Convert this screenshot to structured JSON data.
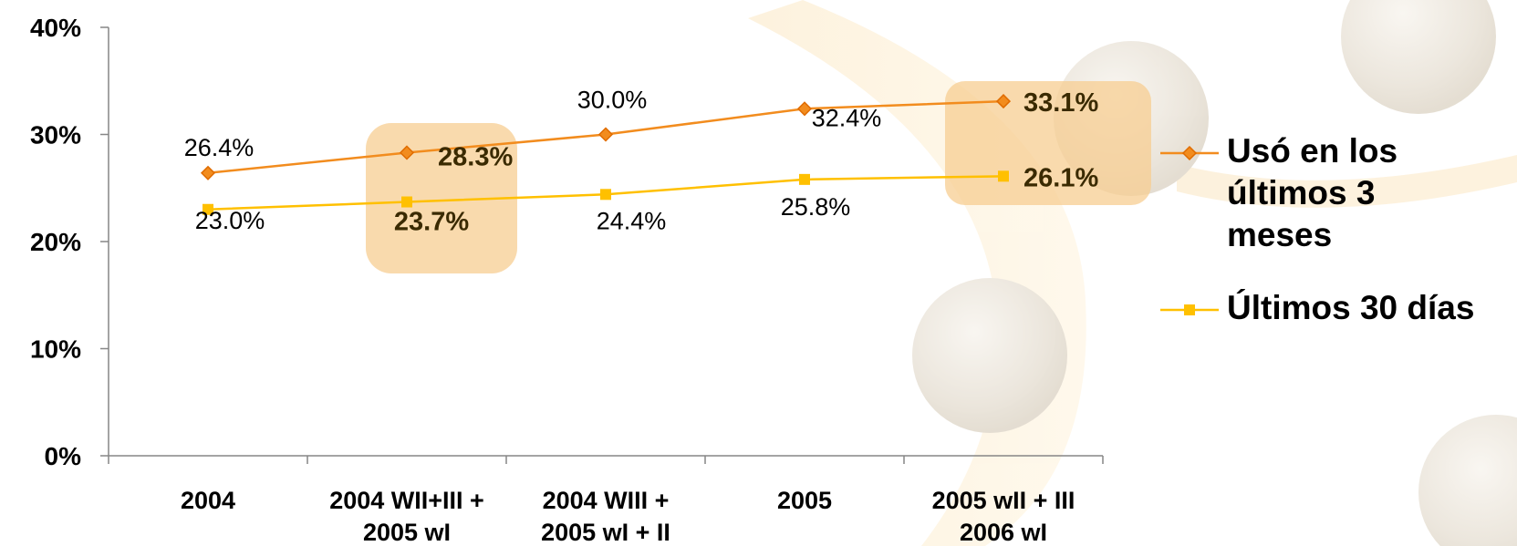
{
  "chart_data": {
    "type": "line",
    "categories": [
      [
        "2004"
      ],
      [
        "2004 WII+III +",
        "2005 wI"
      ],
      [
        "2004 WIII +",
        "2005 wI + II"
      ],
      [
        "2005"
      ],
      [
        "2005 wII + III",
        "2006 wI"
      ]
    ],
    "series": [
      {
        "name": "Usó en los últimos 3 meses",
        "color": "#f28c1e",
        "marker": "diamond",
        "values": [
          26.4,
          28.3,
          30.0,
          32.4,
          33.1
        ],
        "value_labels": [
          "26.4%",
          "28.3%",
          "30.0%",
          "32.4%",
          "33.1%"
        ]
      },
      {
        "name": "Últimos 30 días",
        "color": "#ffc000",
        "marker": "square",
        "values": [
          23.0,
          23.7,
          24.4,
          25.8,
          26.1
        ],
        "value_labels": [
          "23.0%",
          "23.7%",
          "24.4%",
          "25.8%",
          "26.1%"
        ]
      }
    ],
    "ylim": [
      0,
      40
    ],
    "yticks": [
      {
        "value": 0,
        "label": "0%"
      },
      {
        "value": 10,
        "label": "10%"
      },
      {
        "value": 20,
        "label": "20%"
      },
      {
        "value": 30,
        "label": "30%"
      },
      {
        "value": 40,
        "label": "40%"
      }
    ],
    "legend": "right"
  }
}
